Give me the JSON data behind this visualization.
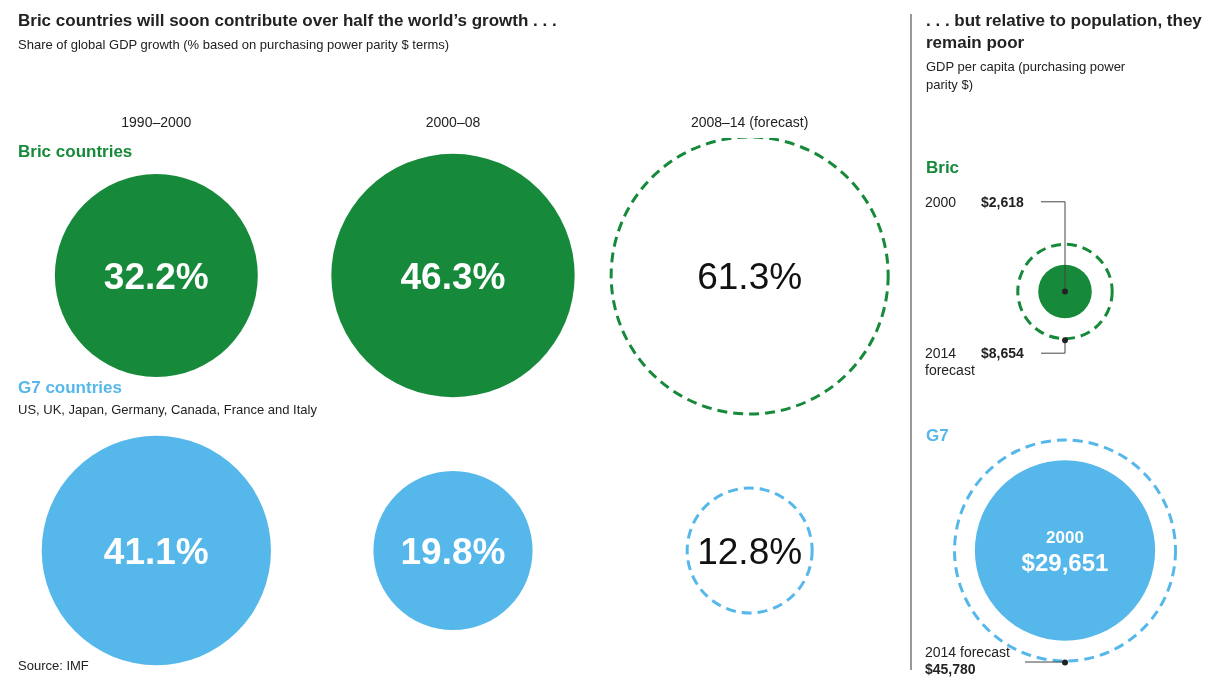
{
  "chart_data": [
    {
      "type": "other",
      "title": "Bric countries will soon contribute over half the world’s growth . . .",
      "subtitle": "Share of global GDP growth (% based on purchasing power parity $ terms)",
      "categories": [
        "1990–2000",
        "2000–08",
        "2008–14 (forecast)"
      ],
      "series": [
        {
          "name": "Bric countries",
          "color": "#168a3a",
          "values": [
            32.2,
            46.3,
            null
          ],
          "value_labels": [
            "32.2%",
            "46.3%",
            null
          ]
        },
        {
          "color": "#168a3a",
          "values": [
            null,
            null,
            61.3
          ],
          "value_labels": [
            null,
            null,
            "61.3%"
          ],
          "line_style": "dashed"
        },
        {
          "name": "G7 countries",
          "color": "#56b8ea",
          "values": [
            41.1,
            19.8,
            null
          ],
          "value_labels": [
            "41.1%",
            "19.8%",
            null
          ]
        },
        {
          "color": "#56b8ea",
          "values": [
            null,
            null,
            12.8
          ],
          "value_labels": [
            null,
            null,
            "12.8%"
          ],
          "line_style": "dashed"
        }
      ],
      "annotations": [
        "US, UK, Japan, Germany, Canada, France and Italy",
        "Source: IMF"
      ]
    },
    {
      "type": "other",
      "title": ". . . but relative to population, they remain poor",
      "subtitle": "GDP per capita (purchasing power parity $)",
      "categories": [
        "2000",
        "2014 forecast"
      ],
      "series": [
        {
          "name": "Bric",
          "color": "#168a3a",
          "values": [
            2618,
            null
          ],
          "value_labels": [
            "$2,618",
            null
          ]
        },
        {
          "color": "#168a3a",
          "values": [
            null,
            8654
          ],
          "value_labels": [
            null,
            "$8,654"
          ],
          "line_style": "dashed"
        },
        {
          "name": "G7",
          "color": "#56b8ea",
          "values": [
            29651,
            null
          ],
          "value_labels": [
            "$29,651",
            null
          ]
        },
        {
          "color": "#56b8ea",
          "values": [
            null,
            45780
          ],
          "value_labels": [
            null,
            "$45,780"
          ],
          "line_style": "dashed"
        }
      ]
    }
  ]
}
